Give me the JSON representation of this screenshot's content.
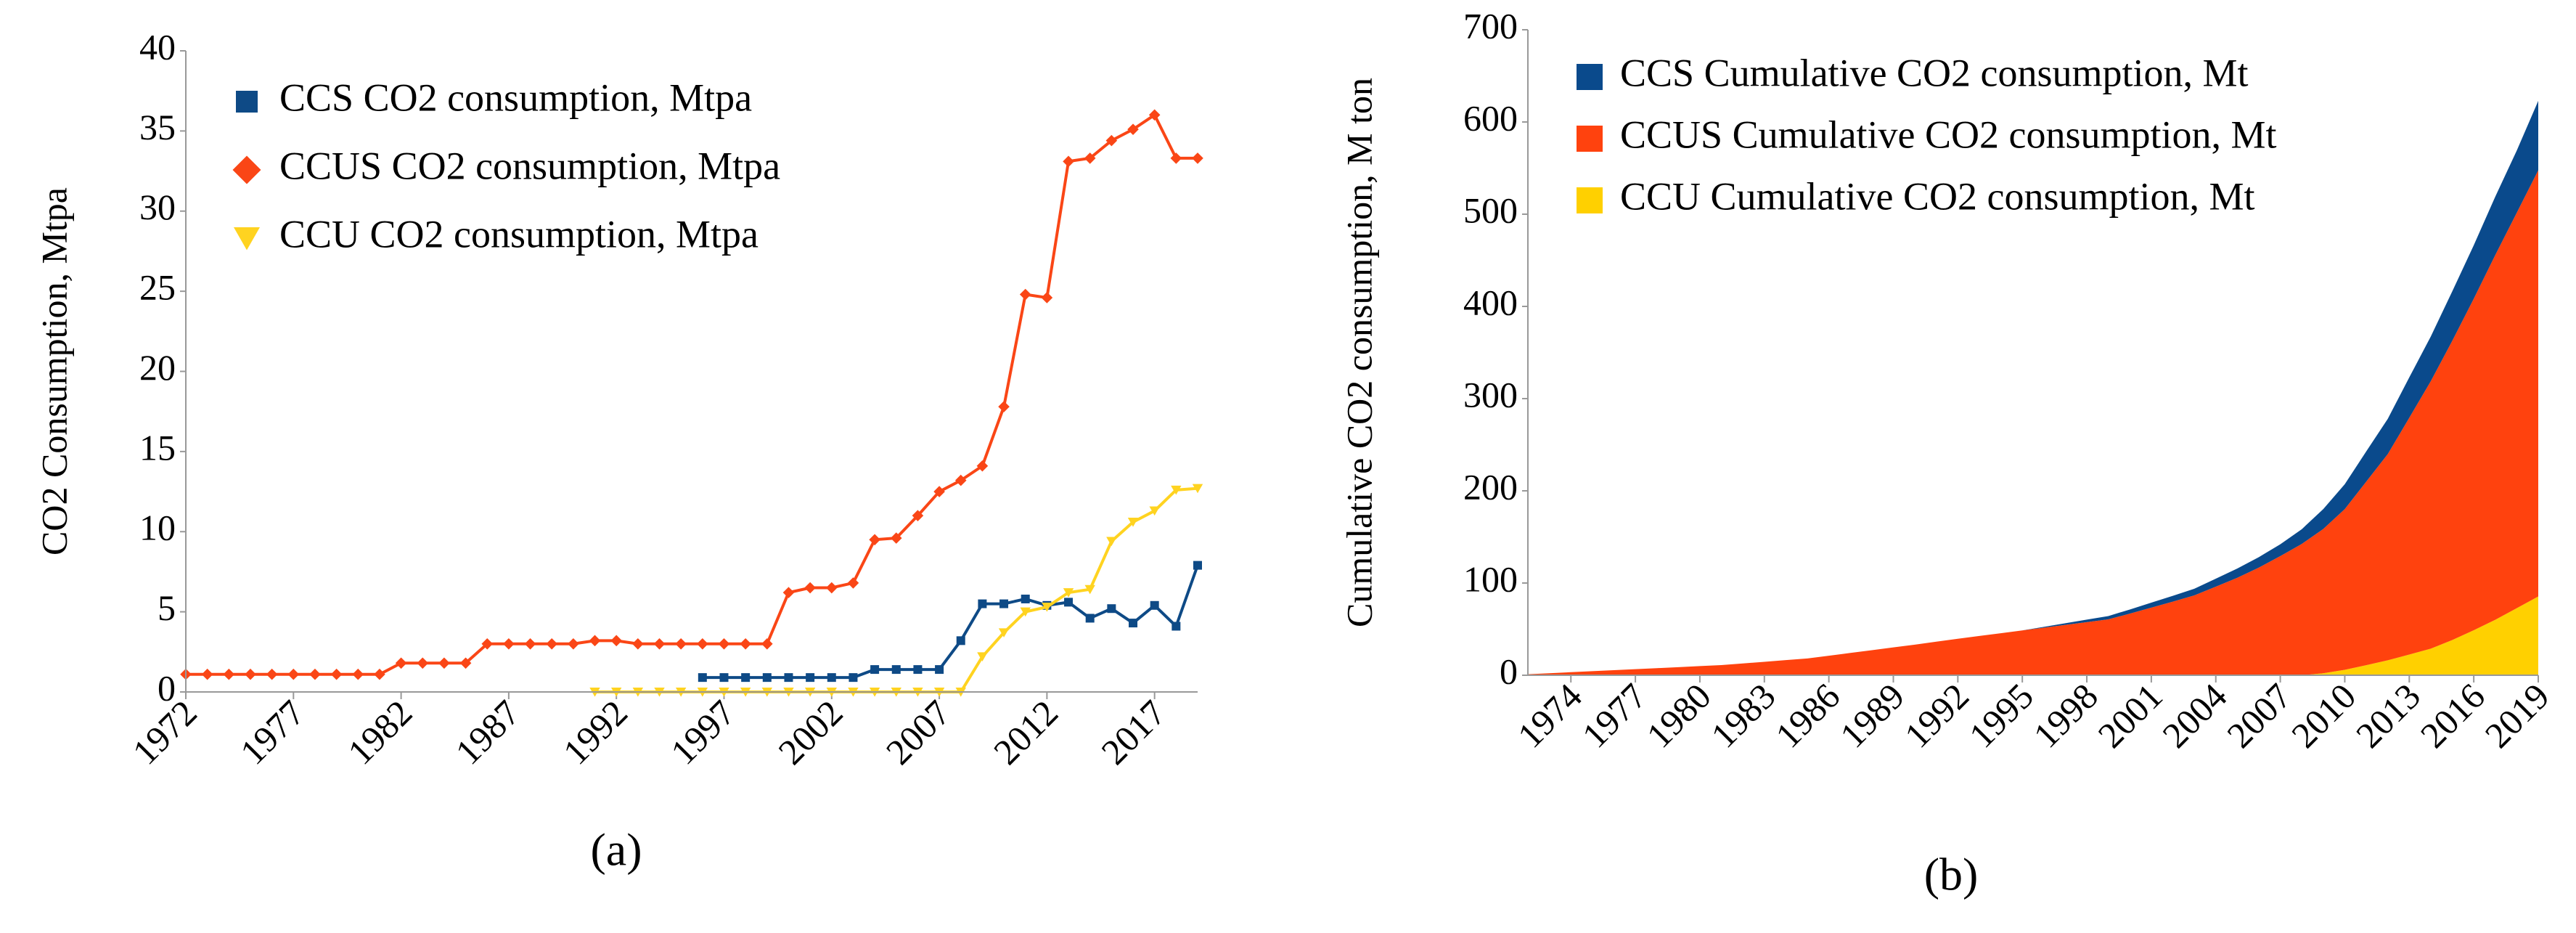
{
  "chart_data": [
    {
      "type": "line",
      "caption": "(a)",
      "ylabel": "CO2 Consumption, Mtpa",
      "x": [
        1972,
        1973,
        1974,
        1975,
        1976,
        1977,
        1978,
        1979,
        1980,
        1981,
        1982,
        1983,
        1984,
        1985,
        1986,
        1987,
        1988,
        1989,
        1990,
        1991,
        1992,
        1993,
        1994,
        1995,
        1996,
        1997,
        1998,
        1999,
        2000,
        2001,
        2002,
        2003,
        2004,
        2005,
        2006,
        2007,
        2008,
        2009,
        2010,
        2011,
        2012,
        2013,
        2014,
        2015,
        2016,
        2017,
        2018,
        2019
      ],
      "xlim": [
        1972,
        2019
      ],
      "xticks": [
        1972,
        1977,
        1982,
        1987,
        1992,
        1997,
        2002,
        2007,
        2012,
        2017
      ],
      "ylim": [
        0,
        40
      ],
      "yticks": [
        0,
        5,
        10,
        15,
        20,
        25,
        30,
        35,
        40
      ],
      "legend": "upper left",
      "grid": false,
      "series": [
        {
          "name": "CCS CO2 consumption, Mtpa",
          "color": "#0e4a86",
          "marker": "square",
          "values": [
            null,
            null,
            null,
            null,
            null,
            null,
            null,
            null,
            null,
            null,
            null,
            null,
            null,
            null,
            null,
            null,
            null,
            null,
            null,
            null,
            null,
            null,
            null,
            null,
            0.9,
            0.9,
            0.9,
            0.9,
            0.9,
            0.9,
            0.9,
            0.9,
            1.4,
            1.4,
            1.4,
            1.4,
            3.2,
            5.5,
            5.5,
            5.8,
            5.4,
            5.6,
            4.6,
            5.2,
            4.3,
            5.4,
            4.1,
            7.9
          ]
        },
        {
          "name": "CCUS CO2 consumption, Mtpa",
          "color": "#fa4616",
          "marker": "diamond",
          "values": [
            1.1,
            1.1,
            1.1,
            1.1,
            1.1,
            1.1,
            1.1,
            1.1,
            1.1,
            1.1,
            1.8,
            1.8,
            1.8,
            1.8,
            3.0,
            3.0,
            3.0,
            3.0,
            3.0,
            3.2,
            3.2,
            3.0,
            3.0,
            3.0,
            3.0,
            3.0,
            3.0,
            3.0,
            6.2,
            6.5,
            6.5,
            6.8,
            9.5,
            9.6,
            11,
            12.5,
            13.2,
            14.1,
            17.8,
            24.8,
            24.6,
            33.1,
            33.3,
            34.4,
            35.1,
            36,
            33.3,
            33.3
          ]
        },
        {
          "name": "CCU CO2 consumption, Mtpa",
          "color": "#ffd320",
          "marker": "triangle-down",
          "values": [
            null,
            null,
            null,
            null,
            null,
            null,
            null,
            null,
            null,
            null,
            null,
            null,
            null,
            null,
            null,
            null,
            null,
            null,
            null,
            0,
            0,
            0,
            0,
            0,
            0,
            0,
            0,
            0,
            0,
            0,
            0,
            0,
            0,
            0,
            0,
            0,
            0,
            2.2,
            3.7,
            5.0,
            5.3,
            6.2,
            6.4,
            9.4,
            10.6,
            11.3,
            12.6,
            12.7
          ]
        }
      ]
    },
    {
      "type": "area",
      "stacked": true,
      "caption": "(b)",
      "ylabel": "Cumulative CO2 consumption, M ton",
      "x": [
        1972,
        1973,
        1974,
        1975,
        1976,
        1977,
        1978,
        1979,
        1980,
        1981,
        1982,
        1983,
        1984,
        1985,
        1986,
        1987,
        1988,
        1989,
        1990,
        1991,
        1992,
        1993,
        1994,
        1995,
        1996,
        1997,
        1998,
        1999,
        2000,
        2001,
        2002,
        2003,
        2004,
        2005,
        2006,
        2007,
        2008,
        2009,
        2010,
        2011,
        2012,
        2013,
        2014,
        2015,
        2016,
        2017,
        2018,
        2019
      ],
      "xlim": [
        1972,
        2019
      ],
      "xticks": [
        1974,
        1977,
        1980,
        1983,
        1986,
        1989,
        1992,
        1995,
        1998,
        2001,
        2004,
        2007,
        2010,
        2013,
        2016,
        2019
      ],
      "ylim": [
        0,
        700
      ],
      "yticks": [
        0,
        100,
        200,
        300,
        400,
        500,
        600,
        700
      ],
      "legend": "upper left",
      "grid": false,
      "series": [
        {
          "name": "CCS Cumulative CO2 consumption, Mt",
          "color": "#0a4a8c",
          "values": [
            0,
            0,
            0,
            0,
            0,
            0,
            0,
            0,
            0,
            0,
            0,
            0,
            0,
            0,
            0,
            0,
            0,
            0,
            0,
            0,
            0,
            0,
            0,
            0,
            0.9,
            1.8,
            2.7,
            3.6,
            4.5,
            5.4,
            6.3,
            7.2,
            8.6,
            10.0,
            11.4,
            12.8,
            16.0,
            21.5,
            27.0,
            32.8,
            38.2,
            43.8,
            48.4,
            53.6,
            57.9,
            63.3,
            67.4,
            75.3
          ]
        },
        {
          "name": "CCUS Cumulative CO2 consumption, Mt",
          "color": "#ff420e",
          "values": [
            1.1,
            2.2,
            3.3,
            4.4,
            5.5,
            6.6,
            7.7,
            8.8,
            9.9,
            11.0,
            12.8,
            14.6,
            16.4,
            18.2,
            21.2,
            24.2,
            27.2,
            30.2,
            33.2,
            36.4,
            39.6,
            42.6,
            45.6,
            48.6,
            51.6,
            54.6,
            57.6,
            60.6,
            66.8,
            73.3,
            79.8,
            86.6,
            96.1,
            105.7,
            116.7,
            129.2,
            142.4,
            156.5,
            174.3,
            199.1,
            223.7,
            256.8,
            290.1,
            324.5,
            359.6,
            395.6,
            428.9,
            462.2
          ]
        },
        {
          "name": "CCU Cumulative CO2 consumption, Mt",
          "color": "#ffd000",
          "values": [
            0,
            0,
            0,
            0,
            0,
            0,
            0,
            0,
            0,
            0,
            0,
            0,
            0,
            0,
            0,
            0,
            0,
            0,
            0,
            0,
            0,
            0,
            0,
            0,
            0,
            0,
            0,
            0,
            0,
            0,
            0,
            0,
            0,
            0,
            0,
            0,
            0,
            2.2,
            5.9,
            10.9,
            16.2,
            22.4,
            28.8,
            38.2,
            48.8,
            60.1,
            72.7,
            85.4
          ]
        }
      ]
    }
  ]
}
